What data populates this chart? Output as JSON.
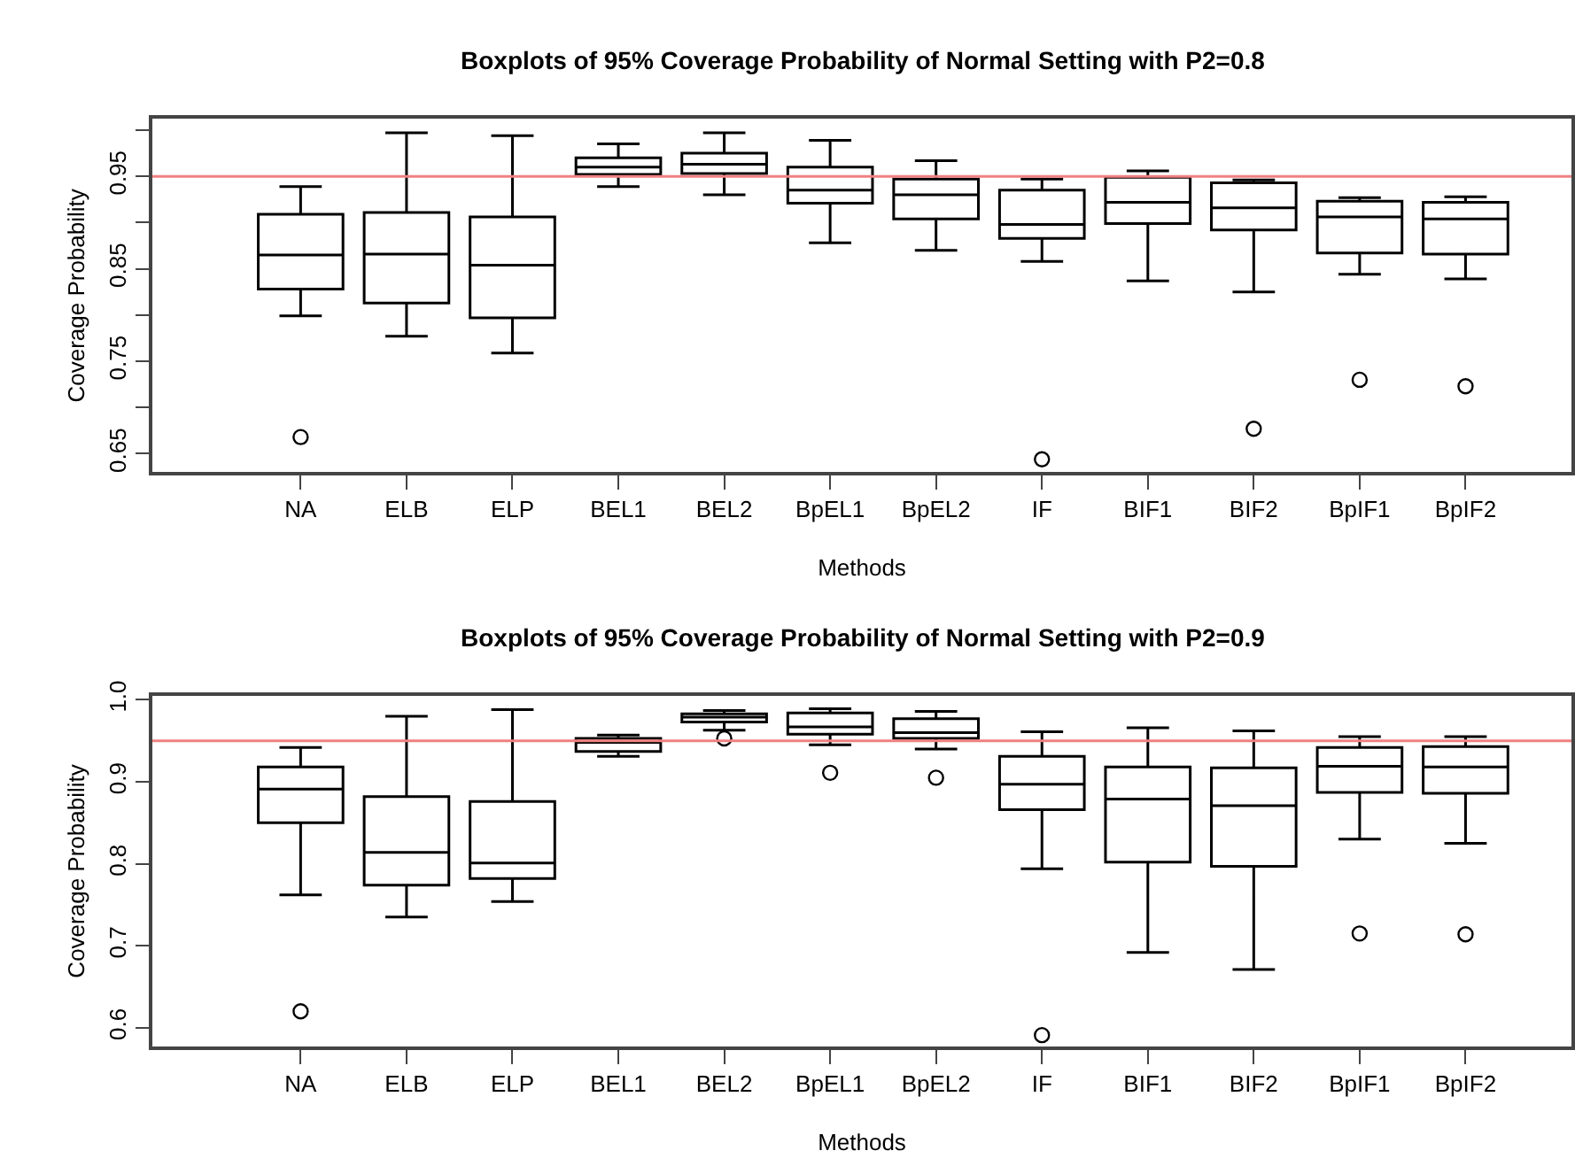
{
  "chart_data": [
    {
      "type": "box",
      "title": "Boxplots of 95% Coverage Probability of Normal Setting with P2=0.8",
      "xlabel": "Methods",
      "ylabel": "Coverage Probability",
      "categories": [
        "NA",
        "ELB",
        "ELP",
        "BEL1",
        "BEL2",
        "BpEL1",
        "BpEL2",
        "IF",
        "BIF1",
        "BIF2",
        "BpIF1",
        "BpIF2"
      ],
      "boxes": [
        {
          "low": 0.799,
          "q1": 0.828,
          "median": 0.865,
          "q3": 0.909,
          "high": 0.939,
          "outliers": [
            0.668
          ]
        },
        {
          "low": 0.777,
          "q1": 0.813,
          "median": 0.866,
          "q3": 0.911,
          "high": 0.997
        },
        {
          "low": 0.759,
          "q1": 0.797,
          "median": 0.854,
          "q3": 0.906,
          "high": 0.994
        },
        {
          "low": 0.939,
          "q1": 0.952,
          "median": 0.96,
          "q3": 0.97,
          "high": 0.985
        },
        {
          "low": 0.93,
          "q1": 0.953,
          "median": 0.963,
          "q3": 0.975,
          "high": 0.997
        },
        {
          "low": 0.878,
          "q1": 0.921,
          "median": 0.935,
          "q3": 0.96,
          "high": 0.989
        },
        {
          "low": 0.87,
          "q1": 0.904,
          "median": 0.93,
          "q3": 0.947,
          "high": 0.967
        },
        {
          "low": 0.858,
          "q1": 0.883,
          "median": 0.898,
          "q3": 0.935,
          "high": 0.947,
          "outliers": [
            0.644
          ]
        },
        {
          "low": 0.837,
          "q1": 0.899,
          "median": 0.922,
          "q3": 0.949,
          "high": 0.956
        },
        {
          "low": 0.825,
          "q1": 0.892,
          "median": 0.916,
          "q3": 0.943,
          "high": 0.946,
          "outliers": [
            0.677
          ]
        },
        {
          "low": 0.844,
          "q1": 0.867,
          "median": 0.906,
          "q3": 0.923,
          "high": 0.927,
          "outliers": [
            0.73
          ]
        },
        {
          "low": 0.839,
          "q1": 0.866,
          "median": 0.904,
          "q3": 0.922,
          "high": 0.928,
          "outliers": [
            0.723
          ]
        }
      ],
      "ylim": [
        0.63,
        1.012
      ],
      "yticks": [
        0.65,
        {
          "value": 0.7,
          "label": null
        },
        0.75,
        {
          "value": 0.8,
          "label": null
        },
        0.85,
        {
          "value": 0.9,
          "label": null
        },
        0.95,
        {
          "value": 1.0,
          "label": null
        }
      ],
      "ref_lines": [
        {
          "axis": "y",
          "value": 0.95,
          "color": "#f08080"
        }
      ]
    },
    {
      "type": "box",
      "title": "Boxplots of 95% Coverage Probability of Normal Setting with P2=0.9",
      "xlabel": "Methods",
      "ylabel": "Coverage Probability",
      "categories": [
        "NA",
        "ELB",
        "ELP",
        "BEL1",
        "BEL2",
        "BpEL1",
        "BpEL2",
        "IF",
        "BIF1",
        "BIF2",
        "BpIF1",
        "BpIF2"
      ],
      "boxes": [
        {
          "low": 0.762,
          "q1": 0.85,
          "median": 0.891,
          "q3": 0.918,
          "high": 0.942,
          "outliers": [
            0.62
          ]
        },
        {
          "low": 0.735,
          "q1": 0.774,
          "median": 0.814,
          "q3": 0.882,
          "high": 0.98
        },
        {
          "low": 0.754,
          "q1": 0.782,
          "median": 0.801,
          "q3": 0.876,
          "high": 0.988
        },
        {
          "low": 0.931,
          "q1": 0.937,
          "median": 0.948,
          "q3": 0.953,
          "high": 0.957
        },
        {
          "low": 0.963,
          "q1": 0.973,
          "median": 0.979,
          "q3": 0.983,
          "high": 0.987,
          "outliers": [
            0.953
          ]
        },
        {
          "low": 0.945,
          "q1": 0.958,
          "median": 0.967,
          "q3": 0.984,
          "high": 0.989,
          "outliers": [
            0.911
          ]
        },
        {
          "low": 0.94,
          "q1": 0.953,
          "median": 0.96,
          "q3": 0.977,
          "high": 0.986,
          "outliers": [
            0.905
          ]
        },
        {
          "low": 0.794,
          "q1": 0.866,
          "median": 0.897,
          "q3": 0.931,
          "high": 0.961,
          "outliers": [
            0.591
          ]
        },
        {
          "low": 0.692,
          "q1": 0.802,
          "median": 0.879,
          "q3": 0.918,
          "high": 0.966
        },
        {
          "low": 0.671,
          "q1": 0.797,
          "median": 0.871,
          "q3": 0.917,
          "high": 0.962
        },
        {
          "low": 0.83,
          "q1": 0.887,
          "median": 0.919,
          "q3": 0.942,
          "high": 0.955,
          "outliers": [
            0.715
          ]
        },
        {
          "low": 0.825,
          "q1": 0.886,
          "median": 0.918,
          "q3": 0.943,
          "high": 0.955,
          "outliers": [
            0.714
          ]
        }
      ],
      "ylim": [
        0.577,
        1.005
      ],
      "yticks": [
        0.6,
        0.7,
        0.8,
        0.9,
        {
          "value": 1,
          "label": "1.0"
        }
      ],
      "ref_lines": [
        {
          "axis": "y",
          "value": 0.95,
          "color": "#f08080"
        }
      ]
    }
  ]
}
